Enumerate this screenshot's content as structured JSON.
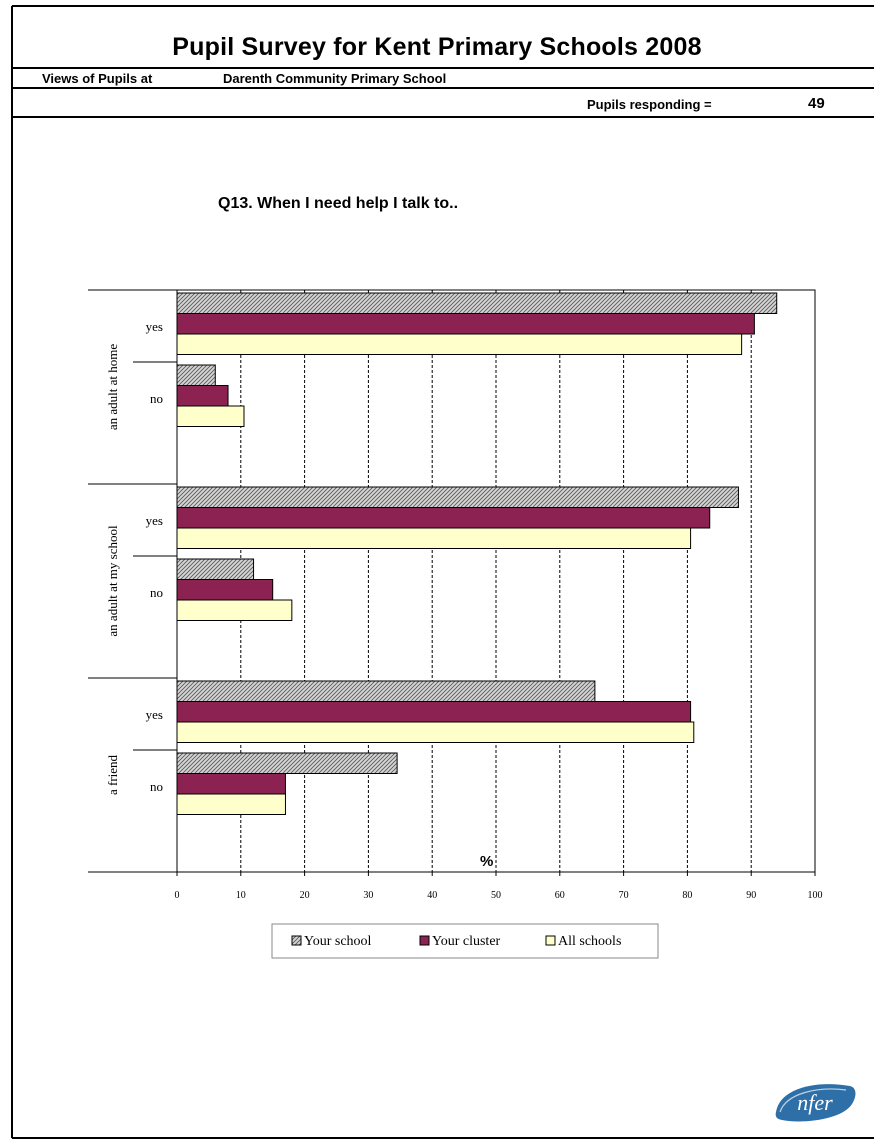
{
  "header": {
    "title": "Pupil Survey for Kent Primary Schools 2008",
    "views_label": "Views of Pupils at",
    "school_name": "Darenth Community Primary School",
    "responding_label": "Pupils responding =",
    "responding_value": "49"
  },
  "logo": {
    "text": "nfer",
    "color": "#2e6fa7"
  },
  "chart_data": {
    "type": "bar",
    "orientation": "horizontal",
    "title": "Q13. When I need help I talk to..",
    "xlabel": "%",
    "xlim": [
      0,
      100
    ],
    "xticks": [
      "0",
      "10",
      "20",
      "30",
      "40",
      "50",
      "60",
      "70",
      "80",
      "90",
      "100"
    ],
    "grid": "vertical dashed",
    "legend_position": "bottom",
    "groups": [
      {
        "label": "an adult at home",
        "items": [
          {
            "label": "yes",
            "values": [
              94,
              90.5,
              88.5
            ]
          },
          {
            "label": "no",
            "values": [
              6,
              8,
              10.5
            ]
          }
        ]
      },
      {
        "label": "an adult at my school",
        "items": [
          {
            "label": "yes",
            "values": [
              88,
              83.5,
              80.5
            ]
          },
          {
            "label": "no",
            "values": [
              12,
              15,
              18
            ]
          }
        ]
      },
      {
        "label": "a friend",
        "items": [
          {
            "label": "yes",
            "values": [
              65.5,
              80.5,
              81
            ]
          },
          {
            "label": "no",
            "values": [
              34.5,
              17,
              17
            ]
          }
        ]
      }
    ],
    "series": [
      {
        "name": "Your school",
        "color": "#cccccc",
        "pattern": "hatched"
      },
      {
        "name": "Your cluster",
        "color": "#8b2252"
      },
      {
        "name": "All schools",
        "color": "#ffffcc"
      }
    ]
  }
}
